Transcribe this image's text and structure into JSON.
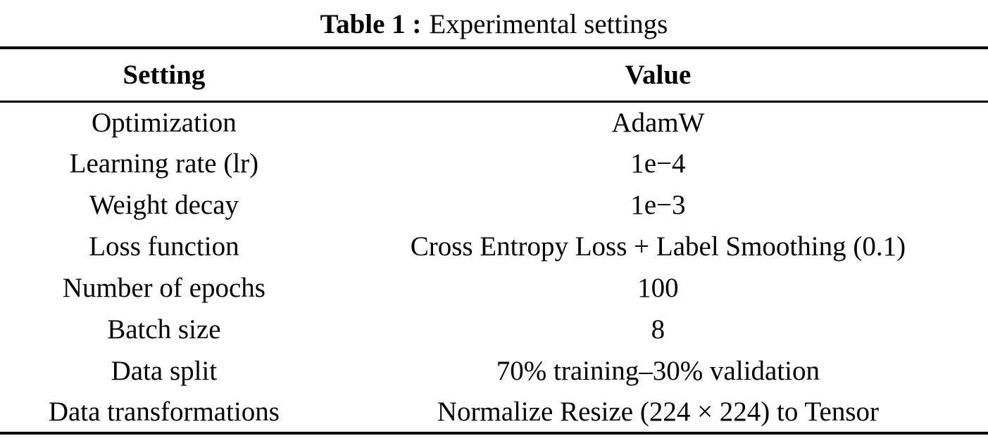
{
  "caption": {
    "label": "Table 1 :",
    "text": "Experimental settings"
  },
  "table": {
    "columns": {
      "setting": "Setting",
      "value": "Value"
    },
    "rows": [
      {
        "setting": "Optimization",
        "value": "AdamW"
      },
      {
        "setting": "Learning rate (lr)",
        "value": "1e−4"
      },
      {
        "setting": "Weight decay",
        "value": "1e−3"
      },
      {
        "setting": "Loss function",
        "value": "Cross Entropy Loss + Label Smoothing (0.1)"
      },
      {
        "setting": "Number of epochs",
        "value": "100"
      },
      {
        "setting": "Batch size",
        "value": "8"
      },
      {
        "setting": "Data split",
        "value": "70% training–30% validation"
      },
      {
        "setting": "Data transformations",
        "value": "Normalize Resize (224 × 224) to Tensor"
      }
    ]
  },
  "colors": {
    "text": "#000000",
    "background": "#ffffff",
    "rule": "#000000"
  }
}
